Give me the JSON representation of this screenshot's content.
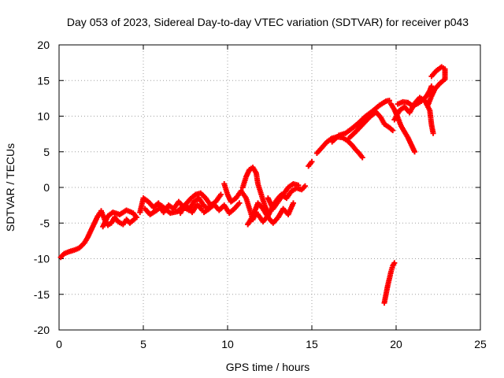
{
  "chart_data": {
    "type": "scatter",
    "title": "Day 053 of 2023, Sidereal Day-to-day VTEC variation (SDTVAR) for receiver p043",
    "xlabel": "GPS time / hours",
    "ylabel": "SDTVAR / TECUs",
    "xlim": [
      0,
      25
    ],
    "ylim": [
      -20,
      20
    ],
    "xticks": [
      0,
      5,
      10,
      15,
      20,
      25
    ],
    "yticks": [
      -20,
      -15,
      -10,
      -5,
      0,
      5,
      10,
      15,
      20
    ],
    "grid": true,
    "marker": "+",
    "marker_color": "#ff0000",
    "series": [
      {
        "name": "p043",
        "tracks": [
          [
            [
              0.1,
              -9.8
            ],
            [
              0.3,
              -9.3
            ],
            [
              0.6,
              -9.0
            ],
            [
              0.9,
              -8.8
            ],
            [
              1.2,
              -8.5
            ],
            [
              1.5,
              -7.8
            ],
            [
              1.7,
              -7.0
            ],
            [
              1.9,
              -6.0
            ],
            [
              2.1,
              -5.0
            ],
            [
              2.3,
              -4.0
            ],
            [
              2.5,
              -3.3
            ]
          ],
          [
            [
              2.5,
              -3.3
            ],
            [
              2.7,
              -4.5
            ],
            [
              2.9,
              -5.3
            ],
            [
              3.1,
              -5.0
            ],
            [
              3.3,
              -4.2
            ],
            [
              3.5,
              -4.8
            ],
            [
              3.8,
              -5.2
            ],
            [
              4.0,
              -4.5
            ],
            [
              4.2,
              -5.0
            ],
            [
              4.5,
              -4.4
            ]
          ],
          [
            [
              2.6,
              -5.5
            ],
            [
              2.9,
              -4.0
            ],
            [
              3.2,
              -3.5
            ],
            [
              3.6,
              -3.8
            ],
            [
              4.0,
              -3.2
            ],
            [
              4.4,
              -3.6
            ],
            [
              4.6,
              -4.2
            ]
          ],
          [
            [
              4.8,
              -3.5
            ],
            [
              5.0,
              -1.5
            ],
            [
              5.3,
              -2.0
            ],
            [
              5.6,
              -2.8
            ],
            [
              5.9,
              -2.2
            ],
            [
              6.2,
              -3.5
            ],
            [
              6.5,
              -2.5
            ],
            [
              6.8,
              -3.0
            ],
            [
              7.1,
              -2.0
            ],
            [
              7.4,
              -2.8
            ],
            [
              7.7,
              -3.2
            ],
            [
              8.0,
              -2.0
            ],
            [
              8.3,
              -1.5
            ],
            [
              8.6,
              -2.6
            ],
            [
              8.9,
              -3.0
            ]
          ],
          [
            [
              5.1,
              -3.0
            ],
            [
              5.4,
              -3.8
            ],
            [
              5.8,
              -3.2
            ],
            [
              6.1,
              -2.6
            ],
            [
              6.6,
              -3.6
            ],
            [
              7.0,
              -3.4
            ],
            [
              7.5,
              -2.4
            ],
            [
              7.9,
              -3.5
            ],
            [
              8.2,
              -2.4
            ],
            [
              8.5,
              -3.2
            ]
          ],
          [
            [
              7.2,
              -3.6
            ],
            [
              7.5,
              -2.4
            ],
            [
              7.8,
              -1.6
            ],
            [
              8.1,
              -1.0
            ],
            [
              8.4,
              -0.8
            ],
            [
              8.7,
              -1.5
            ],
            [
              9.0,
              -2.5
            ],
            [
              9.3,
              -2.0
            ],
            [
              9.6,
              -1.0
            ]
          ],
          [
            [
              8.6,
              -3.5
            ],
            [
              8.9,
              -3.0
            ],
            [
              9.2,
              -2.4
            ],
            [
              9.5,
              -3.2
            ],
            [
              9.8,
              -2.5
            ],
            [
              10.1,
              -3.6
            ],
            [
              10.4,
              -3.0
            ],
            [
              10.7,
              -2.2
            ]
          ],
          [
            [
              9.8,
              0.5
            ],
            [
              10.0,
              -1.0
            ],
            [
              10.2,
              -2.0
            ],
            [
              10.5,
              -1.5
            ],
            [
              10.8,
              -0.5
            ],
            [
              11.1,
              -1.5
            ],
            [
              11.3,
              -3.0
            ],
            [
              11.5,
              -4.5
            ],
            [
              11.7,
              -3.5
            ]
          ],
          [
            [
              10.9,
              0.0
            ],
            [
              11.1,
              1.5
            ],
            [
              11.3,
              2.5
            ],
            [
              11.5,
              2.8
            ],
            [
              11.7,
              2.0
            ],
            [
              11.8,
              0.5
            ],
            [
              12.0,
              -1.0
            ],
            [
              12.2,
              -2.5
            ],
            [
              12.4,
              -3.8
            ]
          ],
          [
            [
              11.2,
              -5.2
            ],
            [
              11.5,
              -4.0
            ],
            [
              11.8,
              -2.2
            ],
            [
              12.1,
              -3.0
            ],
            [
              12.4,
              -4.2
            ],
            [
              12.7,
              -5.0
            ],
            [
              13.0,
              -4.2
            ],
            [
              13.3,
              -3.0
            ],
            [
              13.6,
              -3.8
            ],
            [
              13.9,
              -2.2
            ]
          ],
          [
            [
              11.8,
              -3.8
            ],
            [
              12.1,
              -4.8
            ],
            [
              12.4,
              -4.0
            ],
            [
              12.7,
              -2.5
            ],
            [
              13.0,
              -1.5
            ],
            [
              13.2,
              -1.0
            ],
            [
              13.5,
              -1.5
            ],
            [
              13.8,
              -0.5
            ],
            [
              14.1,
              -0.1
            ],
            [
              14.4,
              -0.3
            ],
            [
              14.6,
              0.2
            ]
          ],
          [
            [
              12.4,
              -1.5
            ],
            [
              12.7,
              -3.0
            ],
            [
              13.0,
              -2.0
            ],
            [
              13.3,
              -1.0
            ],
            [
              13.6,
              0.0
            ],
            [
              13.9,
              0.5
            ],
            [
              14.2,
              0.3
            ]
          ],
          [
            [
              14.8,
              3.0
            ],
            [
              15.0,
              3.6
            ]
          ],
          [
            [
              15.3,
              4.8
            ],
            [
              15.6,
              5.6
            ],
            [
              15.9,
              6.4
            ],
            [
              16.2,
              6.9
            ],
            [
              16.5,
              7.1
            ],
            [
              16.8,
              7.0
            ],
            [
              17.1,
              6.6
            ],
            [
              17.4,
              5.9
            ],
            [
              17.6,
              5.3
            ],
            [
              17.8,
              4.8
            ],
            [
              18.0,
              4.2
            ]
          ],
          [
            [
              16.2,
              6.4
            ],
            [
              16.6,
              7.3
            ],
            [
              17.0,
              7.6
            ],
            [
              17.4,
              8.3
            ],
            [
              17.8,
              9.1
            ],
            [
              18.2,
              10.0
            ],
            [
              18.6,
              10.7
            ],
            [
              19.0,
              11.5
            ],
            [
              19.4,
              12.1
            ],
            [
              19.6,
              12.2
            ]
          ],
          [
            [
              17.2,
              6.9
            ],
            [
              17.6,
              7.8
            ],
            [
              18.0,
              8.8
            ],
            [
              18.4,
              9.8
            ],
            [
              18.8,
              10.6
            ],
            [
              19.1,
              9.8
            ],
            [
              19.3,
              8.9
            ],
            [
              19.6,
              8.4
            ],
            [
              19.8,
              8.0
            ]
          ],
          [
            [
              19.7,
              11.7
            ],
            [
              19.9,
              10.9
            ],
            [
              20.1,
              9.8
            ],
            [
              20.3,
              8.6
            ],
            [
              20.5,
              7.8
            ],
            [
              20.7,
              7.0
            ],
            [
              20.9,
              6.0
            ],
            [
              21.1,
              5.0
            ]
          ],
          [
            [
              20.1,
              11.7
            ],
            [
              20.4,
              12.0
            ],
            [
              20.7,
              11.9
            ],
            [
              21.0,
              11.4
            ],
            [
              21.3,
              11.8
            ],
            [
              21.5,
              12.1
            ],
            [
              21.8,
              12.8
            ],
            [
              22.0,
              13.6
            ],
            [
              22.1,
              14.2
            ]
          ],
          [
            [
              19.9,
              9.5
            ],
            [
              20.2,
              10.8
            ],
            [
              20.5,
              11.3
            ],
            [
              20.8,
              10.5
            ],
            [
              21.1,
              11.8
            ],
            [
              21.4,
              12.6
            ],
            [
              21.7,
              12.2
            ],
            [
              22.0,
              10.8
            ],
            [
              22.1,
              8.8
            ],
            [
              22.2,
              7.6
            ]
          ],
          [
            [
              22.1,
              15.6
            ],
            [
              22.4,
              16.4
            ],
            [
              22.7,
              16.9
            ],
            [
              22.9,
              16.6
            ],
            [
              22.9,
              15.2
            ],
            [
              22.6,
              14.6
            ],
            [
              22.3,
              13.8
            ],
            [
              22.1,
              12.8
            ],
            [
              21.9,
              11.6
            ]
          ],
          [
            [
              19.3,
              -16.2
            ],
            [
              19.4,
              -15.0
            ],
            [
              19.5,
              -13.8
            ],
            [
              19.6,
              -12.8
            ],
            [
              19.7,
              -11.8
            ],
            [
              19.8,
              -11.0
            ],
            [
              19.9,
              -10.6
            ]
          ]
        ]
      }
    ]
  }
}
